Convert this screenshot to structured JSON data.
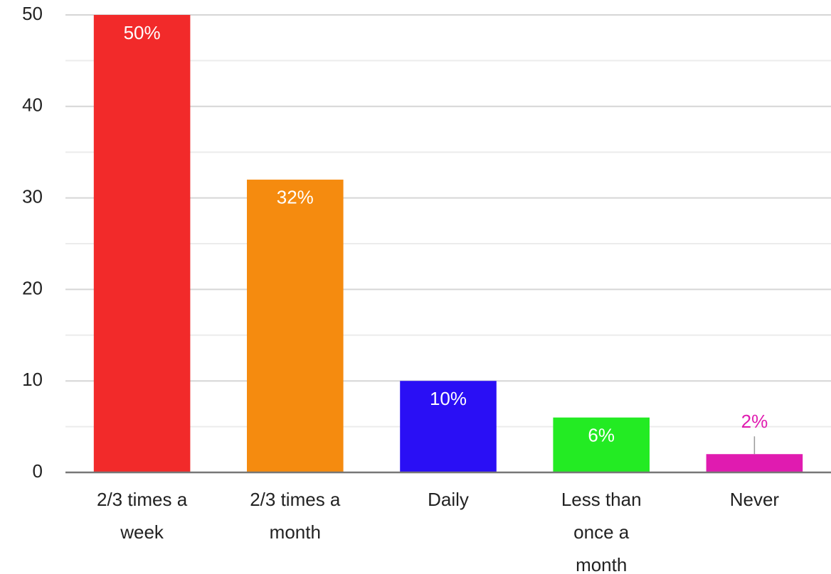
{
  "chart_data": {
    "type": "bar",
    "categories": [
      "2/3 times a week",
      "2/3 times a month",
      "Daily",
      "Less than once a month",
      "Never"
    ],
    "values": [
      50,
      32,
      10,
      6,
      2
    ],
    "value_labels": [
      "50%",
      "32%",
      "10%",
      "6%",
      "2%"
    ],
    "colors": [
      "#f22a2a",
      "#f58b0f",
      "#2a0ff5",
      "#23eb23",
      "#e01bb0"
    ],
    "ylim": [
      0,
      50
    ],
    "yticks": [
      0,
      10,
      20,
      30,
      40,
      50
    ],
    "minor_yticks": [
      5,
      15,
      25,
      35,
      45
    ],
    "grid": true
  }
}
